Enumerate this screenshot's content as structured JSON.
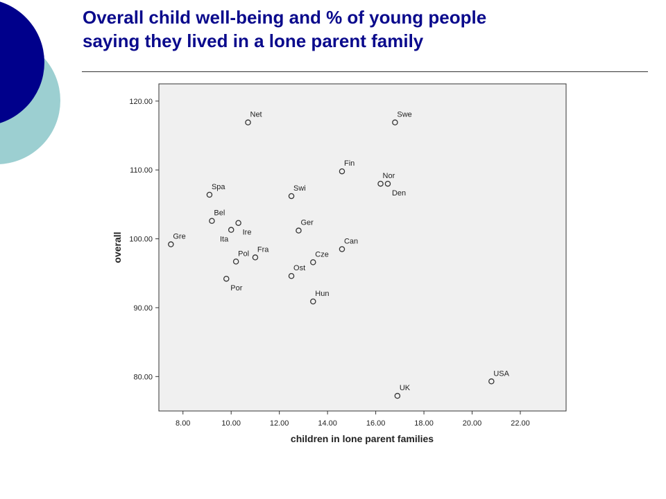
{
  "slide": {
    "title_line1": "Overall child well-being and % of young people",
    "title_line2": "saying they lived in a lone parent family"
  },
  "colors": {
    "title": "#0a0a8c",
    "deco_dark": "#00008b",
    "deco_light": "#9ccfd1",
    "plot_bg": "#f0f0f0",
    "marker": "#333333"
  },
  "chart_data": {
    "type": "scatter",
    "title": "",
    "xlabel": "children in lone parent families",
    "ylabel": "overall",
    "xlim": [
      7.0,
      23.9
    ],
    "ylim": [
      75.0,
      122.5
    ],
    "xticks": [
      8,
      10,
      12,
      14,
      16,
      18,
      20,
      22
    ],
    "xtick_labels": [
      "8.00",
      "10.00",
      "12.00",
      "14.00",
      "16.00",
      "18.00",
      "20.00",
      "22.00"
    ],
    "yticks": [
      80,
      90,
      100,
      110,
      120
    ],
    "ytick_labels": [
      "80.00",
      "90.00",
      "100.00",
      "110.00",
      "120.00"
    ],
    "grid": false,
    "points": [
      {
        "label": "Net",
        "x": 10.7,
        "y": 116.9,
        "pos": "above-right"
      },
      {
        "label": "Swe",
        "x": 16.8,
        "y": 116.9,
        "pos": "above-right"
      },
      {
        "label": "Fin",
        "x": 14.6,
        "y": 109.8,
        "pos": "above-right"
      },
      {
        "label": "Nor",
        "x": 16.2,
        "y": 108.0,
        "pos": "above-right"
      },
      {
        "label": "Den",
        "x": 16.5,
        "y": 108.0,
        "pos": "below-right"
      },
      {
        "label": "Spa",
        "x": 9.1,
        "y": 106.4,
        "pos": "above-right"
      },
      {
        "label": "Swi",
        "x": 12.5,
        "y": 106.2,
        "pos": "above-right"
      },
      {
        "label": "Bel",
        "x": 9.2,
        "y": 102.6,
        "pos": "above-right"
      },
      {
        "label": "Ire",
        "x": 10.3,
        "y": 102.3,
        "pos": "below-right"
      },
      {
        "label": "Ita",
        "x": 10.0,
        "y": 101.3,
        "pos": "below-left"
      },
      {
        "label": "Ger",
        "x": 12.8,
        "y": 101.2,
        "pos": "above-right"
      },
      {
        "label": "Gre",
        "x": 7.5,
        "y": 99.2,
        "pos": "above-right"
      },
      {
        "label": "Can",
        "x": 14.6,
        "y": 98.5,
        "pos": "above-right"
      },
      {
        "label": "Fra",
        "x": 11.0,
        "y": 97.3,
        "pos": "above-right"
      },
      {
        "label": "Pol",
        "x": 10.2,
        "y": 96.7,
        "pos": "above-right"
      },
      {
        "label": "Cze",
        "x": 13.4,
        "y": 96.6,
        "pos": "above-right"
      },
      {
        "label": "Ost",
        "x": 12.5,
        "y": 94.6,
        "pos": "above-right"
      },
      {
        "label": "Por",
        "x": 9.8,
        "y": 94.2,
        "pos": "below-right"
      },
      {
        "label": "Hun",
        "x": 13.4,
        "y": 90.9,
        "pos": "above-right"
      },
      {
        "label": "USA",
        "x": 20.8,
        "y": 79.3,
        "pos": "above-right"
      },
      {
        "label": "UK",
        "x": 16.9,
        "y": 77.2,
        "pos": "above-right"
      }
    ]
  }
}
